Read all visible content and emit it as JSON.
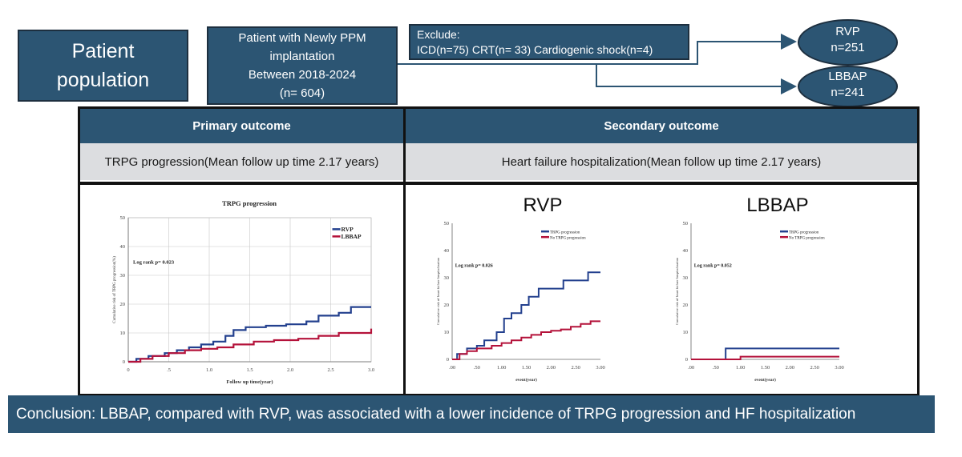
{
  "patient_population": {
    "line1": "Patient",
    "line2": "population"
  },
  "patients_box": {
    "line1": "Patient with Newly PPM",
    "line2": "implantation",
    "line3": "Between 2018-2024",
    "line4": "(n= 604)"
  },
  "exclude_box": {
    "line1": "Exclude:",
    "line2": "ICD(n=75) CRT(n= 33) Cardiogenic shock(n=4)"
  },
  "groups": [
    {
      "name": "RVP",
      "n": "n=251"
    },
    {
      "name": "LBBAP",
      "n": "n=241"
    }
  ],
  "primary": {
    "header": "Primary outcome",
    "subheader": "TRPG progression(Mean follow up time 2.17 years)"
  },
  "secondary": {
    "header": "Secondary outcome",
    "subheader": "Heart failure hospitalization(Mean follow up time 2.17 years)"
  },
  "conclusion": "Conclusion: LBBAP, compared with RVP, was associated with a lower incidence of TRPG progression and HF hospitalization",
  "colors": {
    "box": "#2c5573",
    "series_blue": "#23408e",
    "series_red": "#b4123a"
  },
  "chart_data": [
    {
      "type": "line",
      "title": "TRPG progression",
      "xlabel": "Follow up time(year)",
      "ylabel": "Cumulative risk of TRPG progression(%)",
      "xlim": [
        0,
        3
      ],
      "ylim": [
        0,
        50
      ],
      "xticks": [
        0,
        0.5,
        1.0,
        1.5,
        2.0,
        2.5,
        3.0
      ],
      "xtick_labels": [
        "0",
        ".5",
        "1.0",
        "1.5",
        "2.0",
        "2.5",
        "3.0"
      ],
      "yticks": [
        0,
        10,
        20,
        30,
        40,
        50
      ],
      "grid": true,
      "legend": "top-right",
      "annotation": "Log rank p= 0.023",
      "series": [
        {
          "name": "RVP",
          "color": "#23408e",
          "x": [
            0,
            0.1,
            0.25,
            0.45,
            0.6,
            0.75,
            0.9,
            1.05,
            1.2,
            1.3,
            1.45,
            1.7,
            1.95,
            2.2,
            2.35,
            2.6,
            2.75,
            3.0
          ],
          "y": [
            0,
            1,
            2,
            3,
            4,
            5,
            6,
            7,
            9,
            11,
            12,
            12.5,
            13,
            14,
            16,
            17,
            19,
            19
          ]
        },
        {
          "name": "LBBAP",
          "color": "#b4123a",
          "x": [
            0,
            0.15,
            0.3,
            0.5,
            0.7,
            0.9,
            1.1,
            1.3,
            1.55,
            1.8,
            2.1,
            2.35,
            2.6,
            2.9,
            3.0
          ],
          "y": [
            0,
            1,
            2,
            3,
            4,
            4.5,
            5,
            6,
            7,
            7.5,
            8,
            9,
            10,
            10,
            11.5
          ]
        }
      ]
    },
    {
      "type": "line",
      "title": "RVP",
      "xlabel": "event(year)",
      "ylabel": "Cumulative risk of heart failure hospitalization",
      "xlim": [
        0,
        3
      ],
      "ylim": [
        0,
        50
      ],
      "xticks": [
        0,
        0.5,
        1.0,
        1.5,
        2.0,
        2.5,
        3.0
      ],
      "xtick_labels": [
        ".00",
        ".50",
        "1.00",
        "1.50",
        "2.00",
        "2.50",
        "3.00"
      ],
      "yticks": [
        0,
        10,
        20,
        30,
        40,
        50
      ],
      "legend": "top-right",
      "annotation": "Log rank p= 0.026",
      "series": [
        {
          "name": "TRPG progression",
          "color": "#23408e",
          "x": [
            0,
            0.1,
            0.3,
            0.5,
            0.65,
            0.8,
            0.9,
            1.05,
            1.2,
            1.4,
            1.55,
            1.75,
            2.0,
            2.25,
            2.5,
            2.75,
            3.0
          ],
          "y": [
            0,
            2,
            4,
            5,
            7,
            7,
            10,
            15,
            17,
            20,
            23,
            26,
            26,
            29,
            29,
            32,
            32
          ]
        },
        {
          "name": "No TRPG progression",
          "color": "#b4123a",
          "x": [
            0,
            0.15,
            0.3,
            0.5,
            0.8,
            1.0,
            1.2,
            1.4,
            1.6,
            1.8,
            2.0,
            2.2,
            2.4,
            2.6,
            2.8,
            3.0
          ],
          "y": [
            0,
            2,
            3,
            4,
            5,
            6,
            7,
            8,
            9,
            10,
            10.5,
            11,
            12,
            13,
            14,
            14
          ]
        }
      ]
    },
    {
      "type": "line",
      "title": "LBBAP",
      "xlabel": "event(year)",
      "ylabel": "Cumulative risk of heart failure hospitalization",
      "xlim": [
        0,
        3
      ],
      "ylim": [
        0,
        50
      ],
      "xticks": [
        0,
        0.5,
        1.0,
        1.5,
        2.0,
        2.5,
        3.0
      ],
      "xtick_labels": [
        ".00",
        ".50",
        "1.00",
        "1.50",
        "2.00",
        "2.50",
        "3.00"
      ],
      "yticks": [
        0,
        10,
        20,
        30,
        40,
        50
      ],
      "legend": "top-right",
      "annotation": "Log rank p= 0.052",
      "series": [
        {
          "name": "TRPG progression",
          "color": "#23408e",
          "x": [
            0,
            0.7,
            0.7,
            3.0
          ],
          "y": [
            0,
            0,
            4,
            4
          ]
        },
        {
          "name": "No TRPG progression",
          "color": "#b4123a",
          "x": [
            0,
            1.0,
            1.0,
            3.0
          ],
          "y": [
            0,
            0,
            1,
            1
          ]
        }
      ]
    }
  ]
}
